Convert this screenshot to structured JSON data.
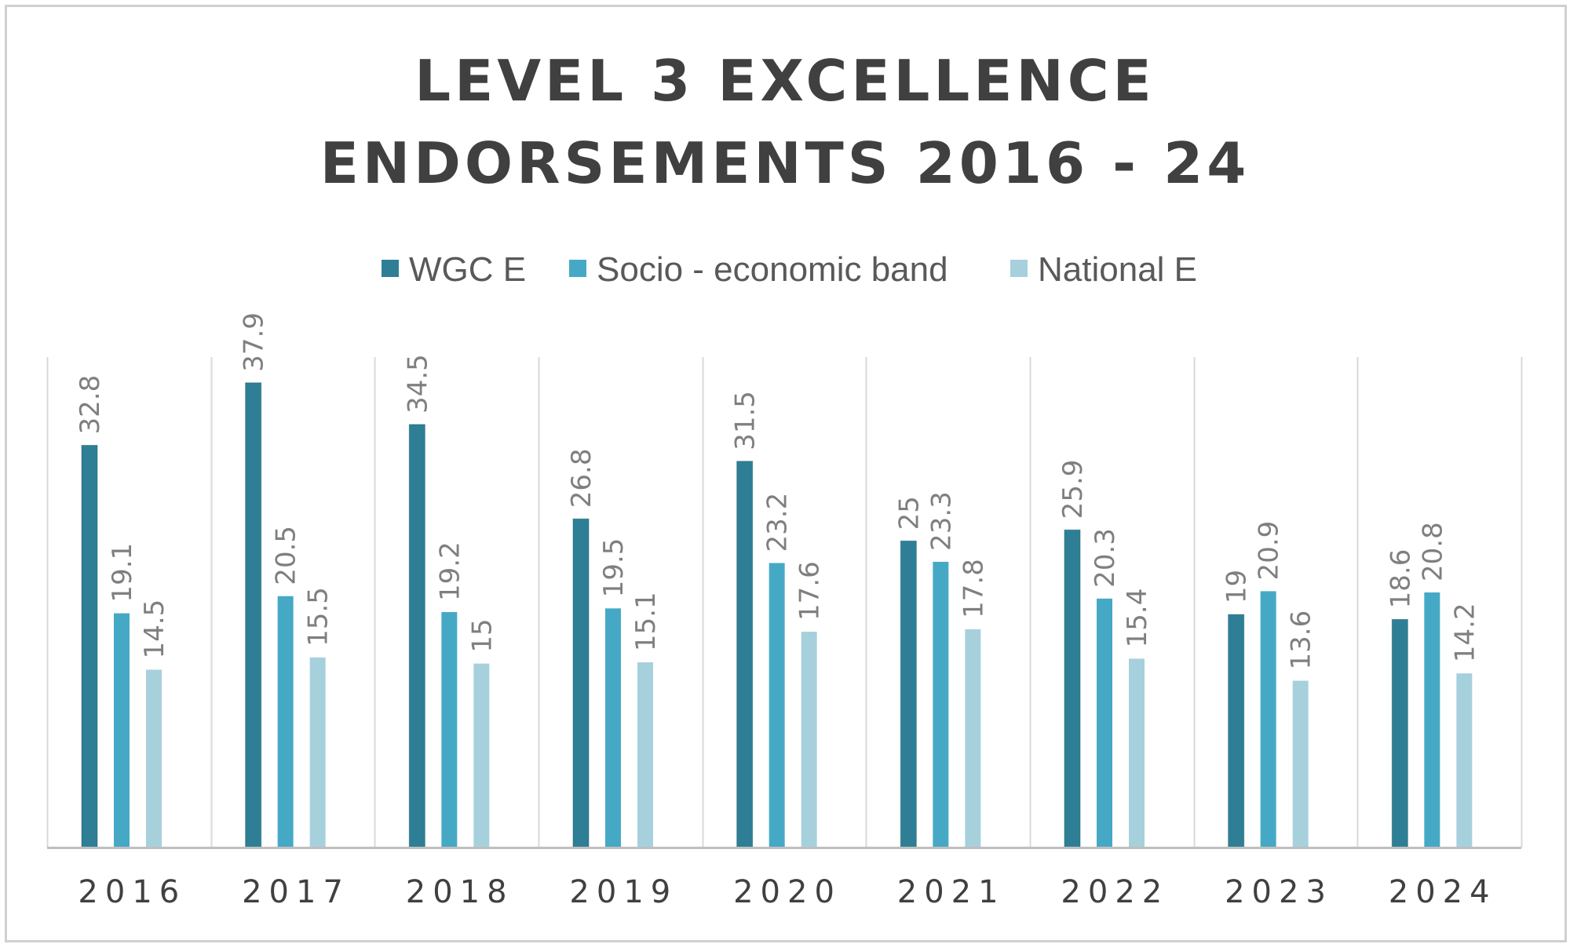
{
  "chart_data": {
    "type": "bar",
    "title_lines": [
      "LEVEL 3 EXCELLENCE",
      "ENDORSEMENTS 2016 - 24"
    ],
    "xlabel": "",
    "ylabel": "",
    "ylim": [
      0,
      40
    ],
    "grid": "vertical category separators",
    "legend": "top-center",
    "categories": [
      "2016",
      "2017",
      "2018",
      "2019",
      "2020",
      "2021",
      "2022",
      "2023",
      "2024"
    ],
    "series": [
      {
        "name": "WGC E",
        "color": "#2e7f95",
        "values": [
          32.8,
          37.9,
          34.5,
          26.8,
          31.5,
          25,
          25.9,
          19,
          18.6
        ],
        "labels": [
          "32.8",
          "37.9",
          "34.5",
          "26.8",
          "31.5",
          "25",
          "25.9",
          "19",
          "18.6"
        ]
      },
      {
        "name": "Socio - economic band",
        "color": "#45a9c6",
        "values": [
          19.1,
          20.5,
          19.2,
          19.5,
          23.2,
          23.3,
          20.3,
          20.9,
          20.8
        ],
        "labels": [
          "19.1",
          "20.5",
          "19.2",
          "19.5",
          "23.2",
          "23.3",
          "20.3",
          "20.9",
          "20.8"
        ]
      },
      {
        "name": "National E",
        "color": "#a7d0dd",
        "values": [
          14.5,
          15.5,
          15,
          15.1,
          17.6,
          17.8,
          15.4,
          13.6,
          14.2
        ],
        "labels": [
          "14.5",
          "15.5",
          "15",
          "15.1",
          "17.6",
          "17.8",
          "15.4",
          "13.6",
          "14.2"
        ]
      }
    ]
  }
}
